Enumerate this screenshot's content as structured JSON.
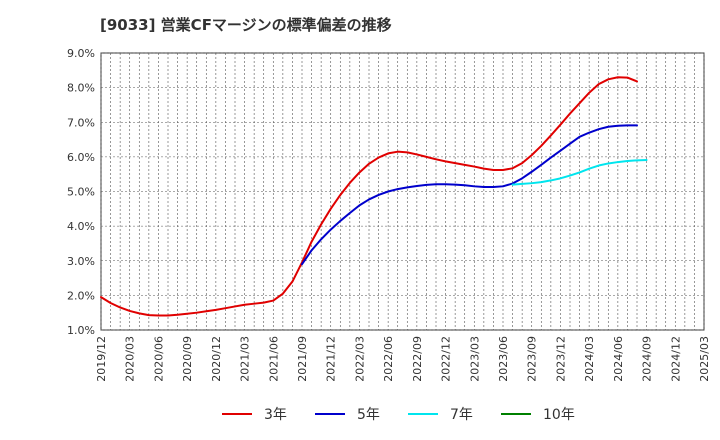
{
  "chart_data": {
    "type": "line",
    "title": "[9033]  営業CFマージンの標準偏差の推移",
    "xlabel": "",
    "ylabel": "",
    "ylim": [
      1.0,
      9.0
    ],
    "y_ticks": [
      "1.0%",
      "2.0%",
      "3.0%",
      "4.0%",
      "5.0%",
      "6.0%",
      "7.0%",
      "8.0%",
      "9.0%"
    ],
    "x_ticks": [
      "2019/12",
      "2020/03",
      "2020/06",
      "2020/09",
      "2020/12",
      "2021/03",
      "2021/06",
      "2021/09",
      "2021/12",
      "2022/03",
      "2022/06",
      "2022/09",
      "2022/12",
      "2023/03",
      "2023/06",
      "2023/09",
      "2023/12",
      "2024/03",
      "2024/06",
      "2024/09",
      "2024/12",
      "2025/03"
    ],
    "x_range": [
      "2019/12",
      "2025/03"
    ],
    "grid": true,
    "legend_position": "bottom",
    "series": [
      {
        "name": "3年",
        "color": "#e00000",
        "points": [
          [
            "2019/12",
            1.95
          ],
          [
            "2020/01",
            1.78
          ],
          [
            "2020/02",
            1.65
          ],
          [
            "2020/03",
            1.55
          ],
          [
            "2020/04",
            1.48
          ],
          [
            "2020/05",
            1.43
          ],
          [
            "2020/06",
            1.42
          ],
          [
            "2020/07",
            1.42
          ],
          [
            "2020/08",
            1.44
          ],
          [
            "2020/09",
            1.47
          ],
          [
            "2020/10",
            1.5
          ],
          [
            "2020/11",
            1.54
          ],
          [
            "2020/12",
            1.58
          ],
          [
            "2021/01",
            1.63
          ],
          [
            "2021/02",
            1.68
          ],
          [
            "2021/03",
            1.73
          ],
          [
            "2021/04",
            1.76
          ],
          [
            "2021/05",
            1.79
          ],
          [
            "2021/06",
            1.85
          ],
          [
            "2021/07",
            2.05
          ],
          [
            "2021/08",
            2.4
          ],
          [
            "2021/09",
            2.95
          ],
          [
            "2021/10",
            3.55
          ],
          [
            "2021/11",
            4.05
          ],
          [
            "2021/12",
            4.5
          ],
          [
            "2022/01",
            4.9
          ],
          [
            "2022/02",
            5.25
          ],
          [
            "2022/03",
            5.55
          ],
          [
            "2022/04",
            5.8
          ],
          [
            "2022/05",
            5.98
          ],
          [
            "2022/06",
            6.1
          ],
          [
            "2022/07",
            6.15
          ],
          [
            "2022/08",
            6.13
          ],
          [
            "2022/09",
            6.07
          ],
          [
            "2022/10",
            6.0
          ],
          [
            "2022/11",
            5.93
          ],
          [
            "2022/12",
            5.87
          ],
          [
            "2023/01",
            5.82
          ],
          [
            "2023/02",
            5.77
          ],
          [
            "2023/03",
            5.72
          ],
          [
            "2023/04",
            5.66
          ],
          [
            "2023/05",
            5.62
          ],
          [
            "2023/06",
            5.62
          ],
          [
            "2023/07",
            5.67
          ],
          [
            "2023/08",
            5.82
          ],
          [
            "2023/09",
            6.05
          ],
          [
            "2023/10",
            6.32
          ],
          [
            "2023/11",
            6.62
          ],
          [
            "2023/12",
            6.93
          ],
          [
            "2024/01",
            7.25
          ],
          [
            "2024/02",
            7.55
          ],
          [
            "2024/03",
            7.85
          ],
          [
            "2024/04",
            8.1
          ],
          [
            "2024/05",
            8.24
          ],
          [
            "2024/06",
            8.3
          ],
          [
            "2024/07",
            8.29
          ],
          [
            "2024/08",
            8.18
          ]
        ]
      },
      {
        "name": "5年",
        "color": "#0000cc",
        "points": [
          [
            "2021/09",
            2.9
          ],
          [
            "2021/10",
            3.3
          ],
          [
            "2021/11",
            3.62
          ],
          [
            "2021/12",
            3.9
          ],
          [
            "2022/01",
            4.15
          ],
          [
            "2022/02",
            4.38
          ],
          [
            "2022/03",
            4.6
          ],
          [
            "2022/04",
            4.77
          ],
          [
            "2022/05",
            4.9
          ],
          [
            "2022/06",
            5.0
          ],
          [
            "2022/07",
            5.07
          ],
          [
            "2022/08",
            5.12
          ],
          [
            "2022/09",
            5.16
          ],
          [
            "2022/10",
            5.19
          ],
          [
            "2022/11",
            5.21
          ],
          [
            "2022/12",
            5.21
          ],
          [
            "2023/01",
            5.2
          ],
          [
            "2023/02",
            5.18
          ],
          [
            "2023/03",
            5.15
          ],
          [
            "2023/04",
            5.13
          ],
          [
            "2023/05",
            5.13
          ],
          [
            "2023/06",
            5.15
          ],
          [
            "2023/07",
            5.23
          ],
          [
            "2023/08",
            5.38
          ],
          [
            "2023/09",
            5.57
          ],
          [
            "2023/10",
            5.77
          ],
          [
            "2023/11",
            5.98
          ],
          [
            "2023/12",
            6.18
          ],
          [
            "2024/01",
            6.38
          ],
          [
            "2024/02",
            6.58
          ],
          [
            "2024/03",
            6.7
          ],
          [
            "2024/04",
            6.8
          ],
          [
            "2024/05",
            6.87
          ],
          [
            "2024/06",
            6.9
          ],
          [
            "2024/07",
            6.91
          ],
          [
            "2024/08",
            6.91
          ]
        ]
      },
      {
        "name": "7年",
        "color": "#00e5ee",
        "points": [
          [
            "2023/07",
            5.2
          ],
          [
            "2023/08",
            5.22
          ],
          [
            "2023/09",
            5.24
          ],
          [
            "2023/10",
            5.27
          ],
          [
            "2023/11",
            5.32
          ],
          [
            "2023/12",
            5.38
          ],
          [
            "2024/01",
            5.46
          ],
          [
            "2024/02",
            5.55
          ],
          [
            "2024/03",
            5.66
          ],
          [
            "2024/04",
            5.75
          ],
          [
            "2024/05",
            5.81
          ],
          [
            "2024/06",
            5.85
          ],
          [
            "2024/07",
            5.88
          ],
          [
            "2024/08",
            5.9
          ],
          [
            "2024/09",
            5.91
          ]
        ]
      },
      {
        "name": "10年",
        "color": "#008000",
        "points": []
      }
    ]
  }
}
